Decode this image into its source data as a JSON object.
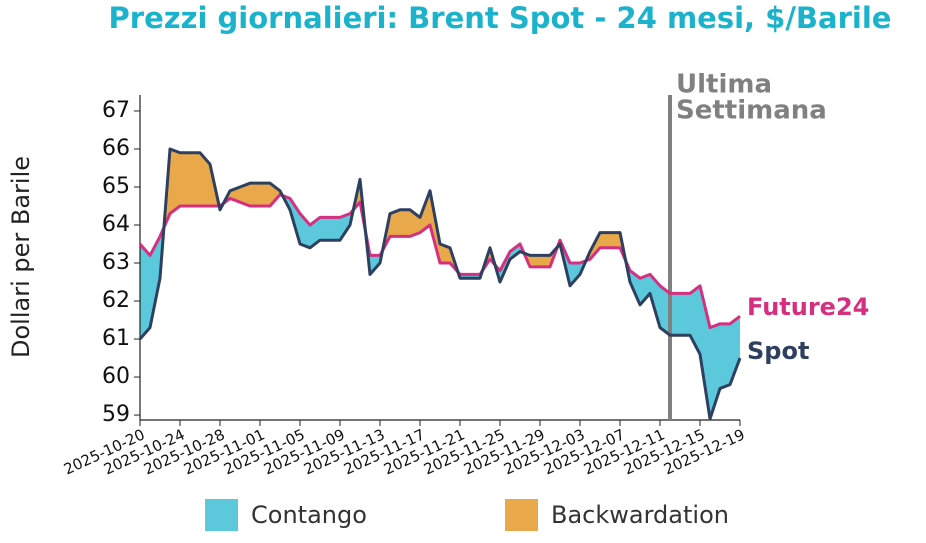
{
  "chart_data": {
    "type": "line",
    "title": "Prezzi giornalieri: Brent Spot - 24 mesi, $/Barile",
    "y_label": "Dollari per Barile",
    "x": [
      "2025-10-20",
      "2025-10-21",
      "2025-10-22",
      "2025-10-23",
      "2025-10-24",
      "2025-10-25",
      "2025-10-26",
      "2025-10-27",
      "2025-10-28",
      "2025-10-29",
      "2025-10-30",
      "2025-10-31",
      "2025-11-01",
      "2025-11-02",
      "2025-11-03",
      "2025-11-04",
      "2025-11-05",
      "2025-11-06",
      "2025-11-07",
      "2025-11-08",
      "2025-11-09",
      "2025-11-10",
      "2025-11-11",
      "2025-11-12",
      "2025-11-13",
      "2025-11-14",
      "2025-11-15",
      "2025-11-16",
      "2025-11-17",
      "2025-11-18",
      "2025-11-19",
      "2025-11-20",
      "2025-11-21",
      "2025-11-22",
      "2025-11-23",
      "2025-11-24",
      "2025-11-25",
      "2025-11-26",
      "2025-11-27",
      "2025-11-28",
      "2025-11-29",
      "2025-11-30",
      "2025-12-01",
      "2025-12-02",
      "2025-12-03",
      "2025-12-04",
      "2025-12-05",
      "2025-12-06",
      "2025-12-07",
      "2025-12-08",
      "2025-12-09",
      "2025-12-10",
      "2025-12-11",
      "2025-12-12",
      "2025-12-13",
      "2025-12-14",
      "2025-12-15",
      "2025-12-16",
      "2025-12-17",
      "2025-12-18",
      "2025-12-19"
    ],
    "series": [
      {
        "name": "Spot",
        "color": "#2e3f5f",
        "values": [
          61.0,
          61.3,
          62.6,
          66.0,
          65.9,
          65.9,
          65.9,
          65.6,
          64.4,
          64.9,
          65.0,
          65.1,
          65.1,
          65.1,
          64.9,
          64.4,
          63.5,
          63.4,
          63.6,
          63.6,
          63.6,
          64.0,
          65.2,
          62.7,
          63.0,
          64.3,
          64.4,
          64.4,
          64.2,
          64.9,
          63.5,
          63.4,
          62.6,
          62.6,
          62.6,
          63.4,
          62.5,
          63.1,
          63.3,
          63.2,
          63.2,
          63.2,
          63.5,
          62.4,
          62.7,
          63.3,
          63.8,
          63.8,
          63.8,
          62.5,
          61.9,
          62.2,
          61.3,
          61.1,
          61.1,
          61.1,
          60.6,
          58.9,
          59.7,
          59.8,
          60.5
        ]
      },
      {
        "name": "Future24",
        "color": "#d62f7f",
        "values": [
          63.5,
          63.2,
          63.7,
          64.3,
          64.5,
          64.5,
          64.5,
          64.5,
          64.5,
          64.7,
          64.6,
          64.5,
          64.5,
          64.5,
          64.8,
          64.7,
          64.3,
          64.0,
          64.2,
          64.2,
          64.2,
          64.3,
          64.6,
          63.2,
          63.2,
          63.7,
          63.7,
          63.7,
          63.8,
          64.0,
          63.0,
          63.0,
          62.7,
          62.7,
          62.7,
          63.1,
          62.8,
          63.3,
          63.5,
          62.9,
          62.9,
          62.9,
          63.6,
          63.0,
          63.0,
          63.1,
          63.4,
          63.4,
          63.4,
          62.8,
          62.6,
          62.7,
          62.4,
          62.2,
          62.2,
          62.2,
          62.4,
          61.3,
          61.4,
          61.4,
          61.6
        ]
      }
    ],
    "fill_legend": [
      {
        "name": "Contango",
        "color": "#5bc8dc"
      },
      {
        "name": "Backwardation",
        "color": "#e9a94a"
      }
    ],
    "vline": {
      "x": "2025-12-12",
      "label_lines": [
        "Ultima",
        "Settimana"
      ],
      "color": "#808080"
    },
    "xlim": [
      "2025-10-20",
      "2025-12-19"
    ],
    "xticks": [
      "2025-10-20",
      "2025-10-24",
      "2025-10-28",
      "2025-11-01",
      "2025-11-05",
      "2025-11-09",
      "2025-11-13",
      "2025-11-17",
      "2025-11-21",
      "2025-11-25",
      "2025-11-29",
      "2025-12-03",
      "2025-12-07",
      "2025-12-11",
      "2025-12-15",
      "2025-12-19"
    ],
    "ylim": [
      58.87,
      67.42
    ],
    "yticks": [
      59,
      60,
      61,
      62,
      63,
      64,
      65,
      66,
      67
    ]
  }
}
